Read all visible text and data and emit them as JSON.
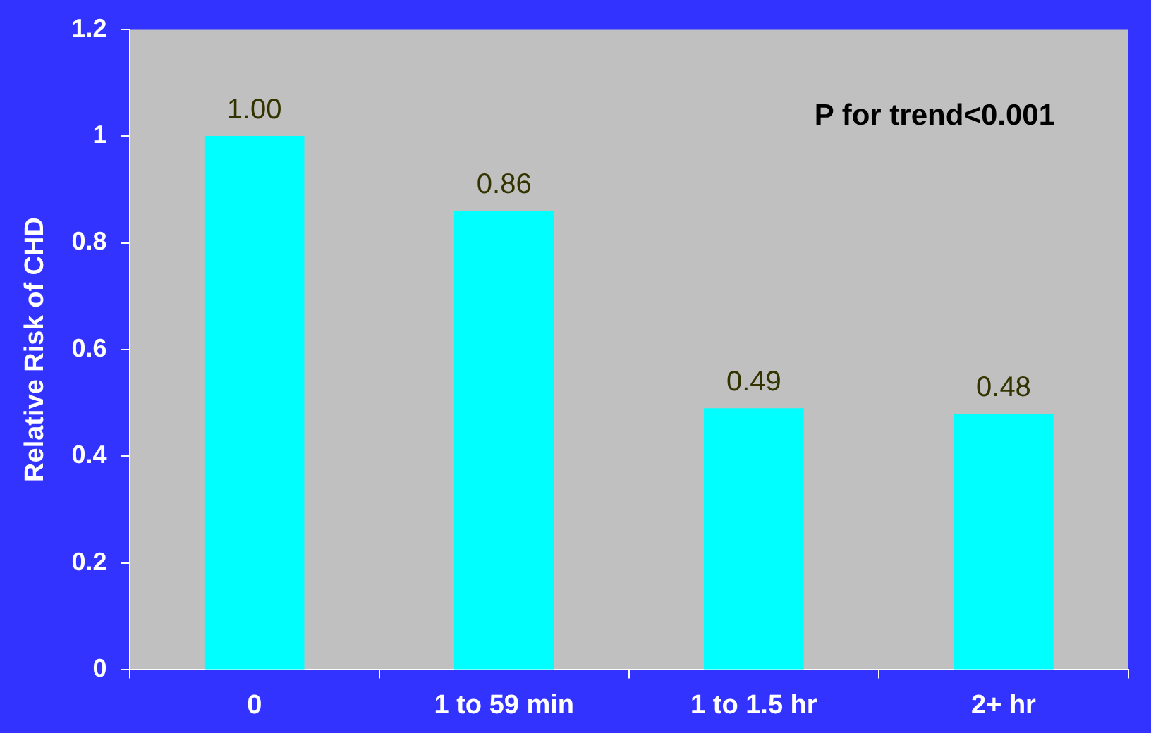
{
  "chart_data": {
    "type": "bar",
    "ylabel": "Relative Risk of CHD",
    "categories": [
      "0",
      "1 to 59 min",
      "1 to 1.5 hr",
      "2+ hr"
    ],
    "values": [
      1,
      0.86,
      0.49,
      0.48
    ],
    "value_labels": [
      "1.00",
      "0.86",
      "0.49",
      "0.48"
    ],
    "color": "#00ffff",
    "ylim": [
      0,
      1.2
    ],
    "yticks": [
      0,
      0.2,
      0.4,
      0.6,
      0.8,
      1,
      1.2
    ],
    "grid": false,
    "annotations": [
      "P for trend<0.001"
    ]
  }
}
